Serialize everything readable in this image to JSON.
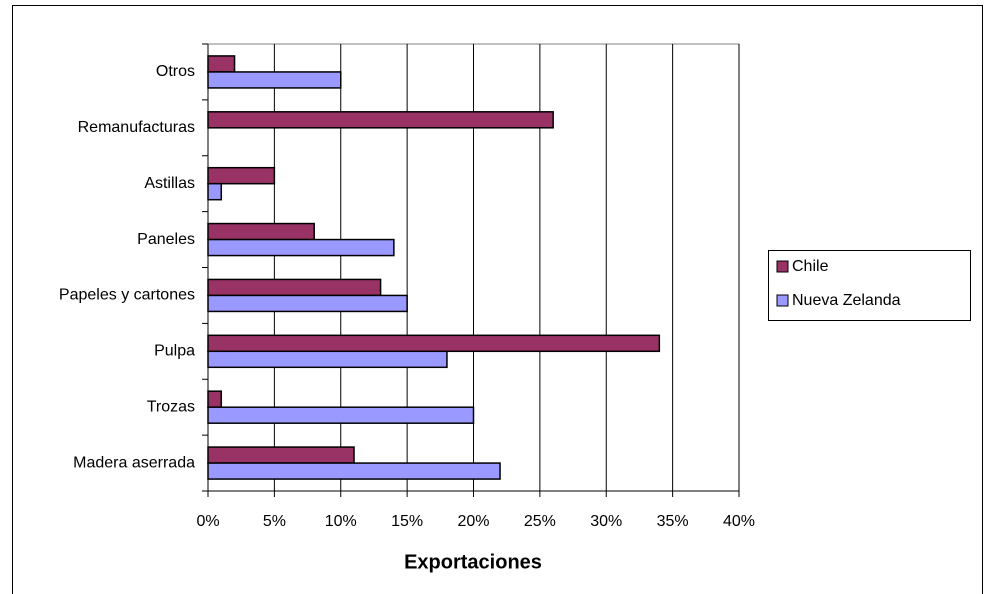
{
  "chart_data": {
    "type": "hbar",
    "x_label": "Exportaciones",
    "categories": [
      "Madera aserrada",
      "Trozas",
      "Pulpa",
      "Papeles y cartones",
      "Paneles",
      "Astillas",
      "Remanufacturas",
      "Otros"
    ],
    "series": [
      {
        "name": "Chile",
        "color": "#993366",
        "values": [
          11,
          1,
          34,
          13,
          8,
          5,
          26,
          2
        ]
      },
      {
        "name": "Nueva Zelanda",
        "color": "#9999ff",
        "values": [
          22,
          20,
          18,
          15,
          14,
          1,
          null,
          10
        ]
      }
    ],
    "xlim": [
      0,
      40
    ],
    "xticks": [
      {
        "value": 0,
        "label": "0%"
      },
      {
        "value": 5,
        "label": "5%"
      },
      {
        "value": 10,
        "label": "10%"
      },
      {
        "value": 15,
        "label": "15%"
      },
      {
        "value": 20,
        "label": "20%"
      },
      {
        "value": 25,
        "label": "25%"
      },
      {
        "value": 30,
        "label": "30%"
      },
      {
        "value": 35,
        "label": "35%"
      },
      {
        "value": 40,
        "label": "40%"
      }
    ],
    "grid": true,
    "legend": "right"
  }
}
